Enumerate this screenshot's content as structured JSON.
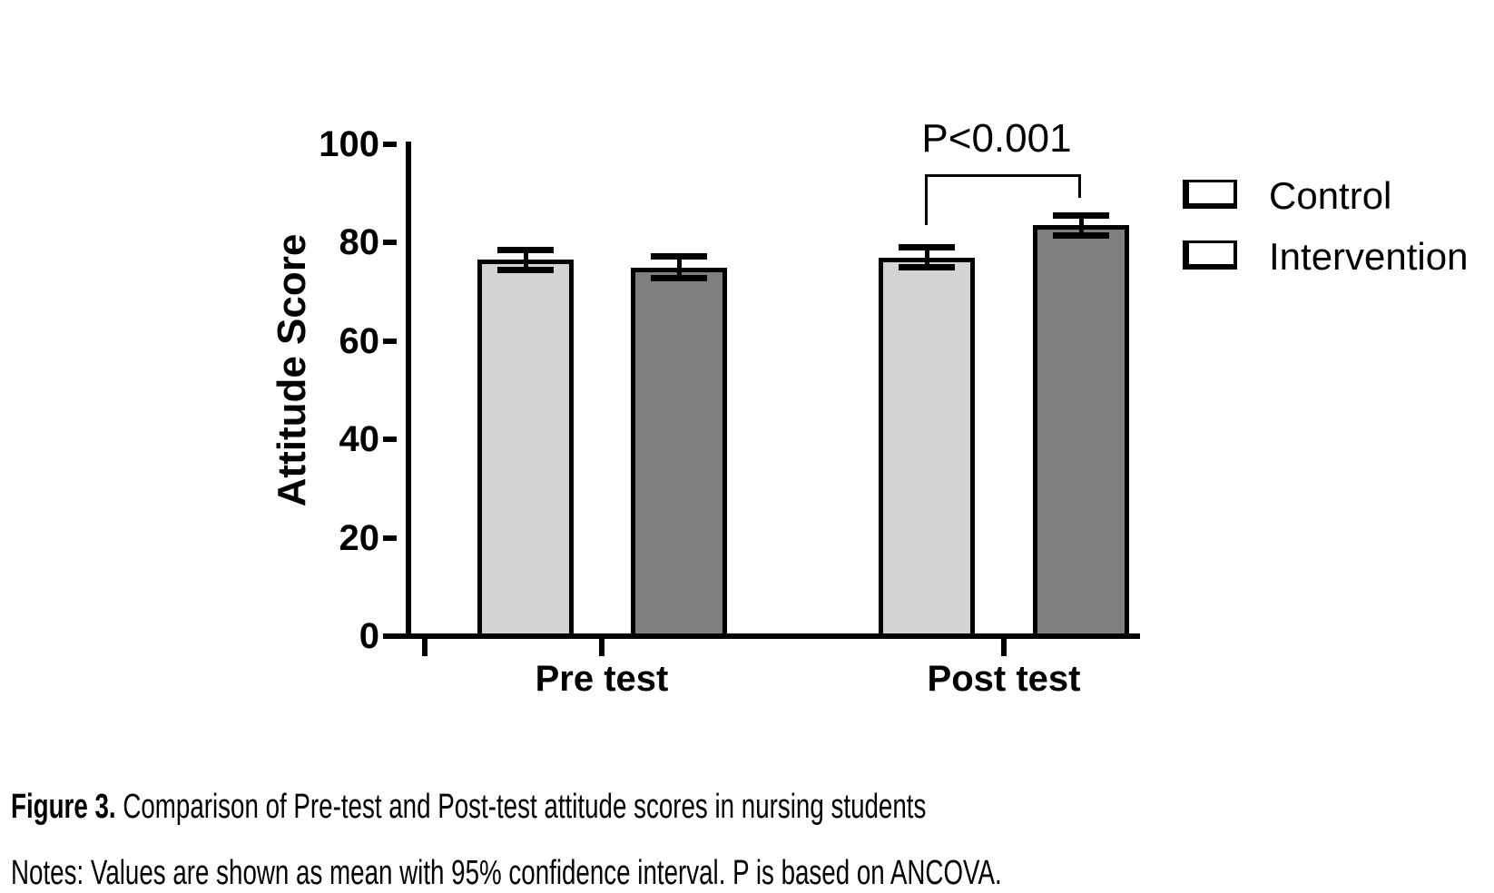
{
  "chart_data": {
    "type": "bar",
    "title": "",
    "ylabel": "Attitude Score",
    "xlabel": "",
    "ylim": [
      0,
      100
    ],
    "yticks": [
      0,
      20,
      40,
      60,
      80,
      100
    ],
    "categories": [
      "Pre test",
      "Post test"
    ],
    "series": [
      {
        "name": "Control",
        "color": "#d3d3d3",
        "values": [
          76.5,
          77
        ],
        "ci_halfwidth": [
          2,
          2
        ]
      },
      {
        "name": "Intervention",
        "color": "#7f7f7f",
        "values": [
          75,
          83.5
        ],
        "ci_halfwidth": [
          2.2,
          2
        ]
      }
    ],
    "error_bars": "95% confidence interval",
    "grid": false,
    "legend_position": "right-top",
    "significance": {
      "label": "P<0.001",
      "category": "Post test",
      "compares": [
        "Control",
        "Intervention"
      ]
    }
  },
  "legend": {
    "items": [
      {
        "label": "Control",
        "color": "#d3d3d3"
      },
      {
        "label": "Intervention",
        "color": "#7f7f7f"
      }
    ]
  },
  "annotation": {
    "p_value": "P<0.001"
  },
  "caption": {
    "prefix": "Figure 3.",
    "text": " Comparison of Pre-test and Post-test attitude scores in nursing students"
  },
  "notes": "Notes: Values are shown as mean with 95% confidence interval. P is based on ANCOVA."
}
